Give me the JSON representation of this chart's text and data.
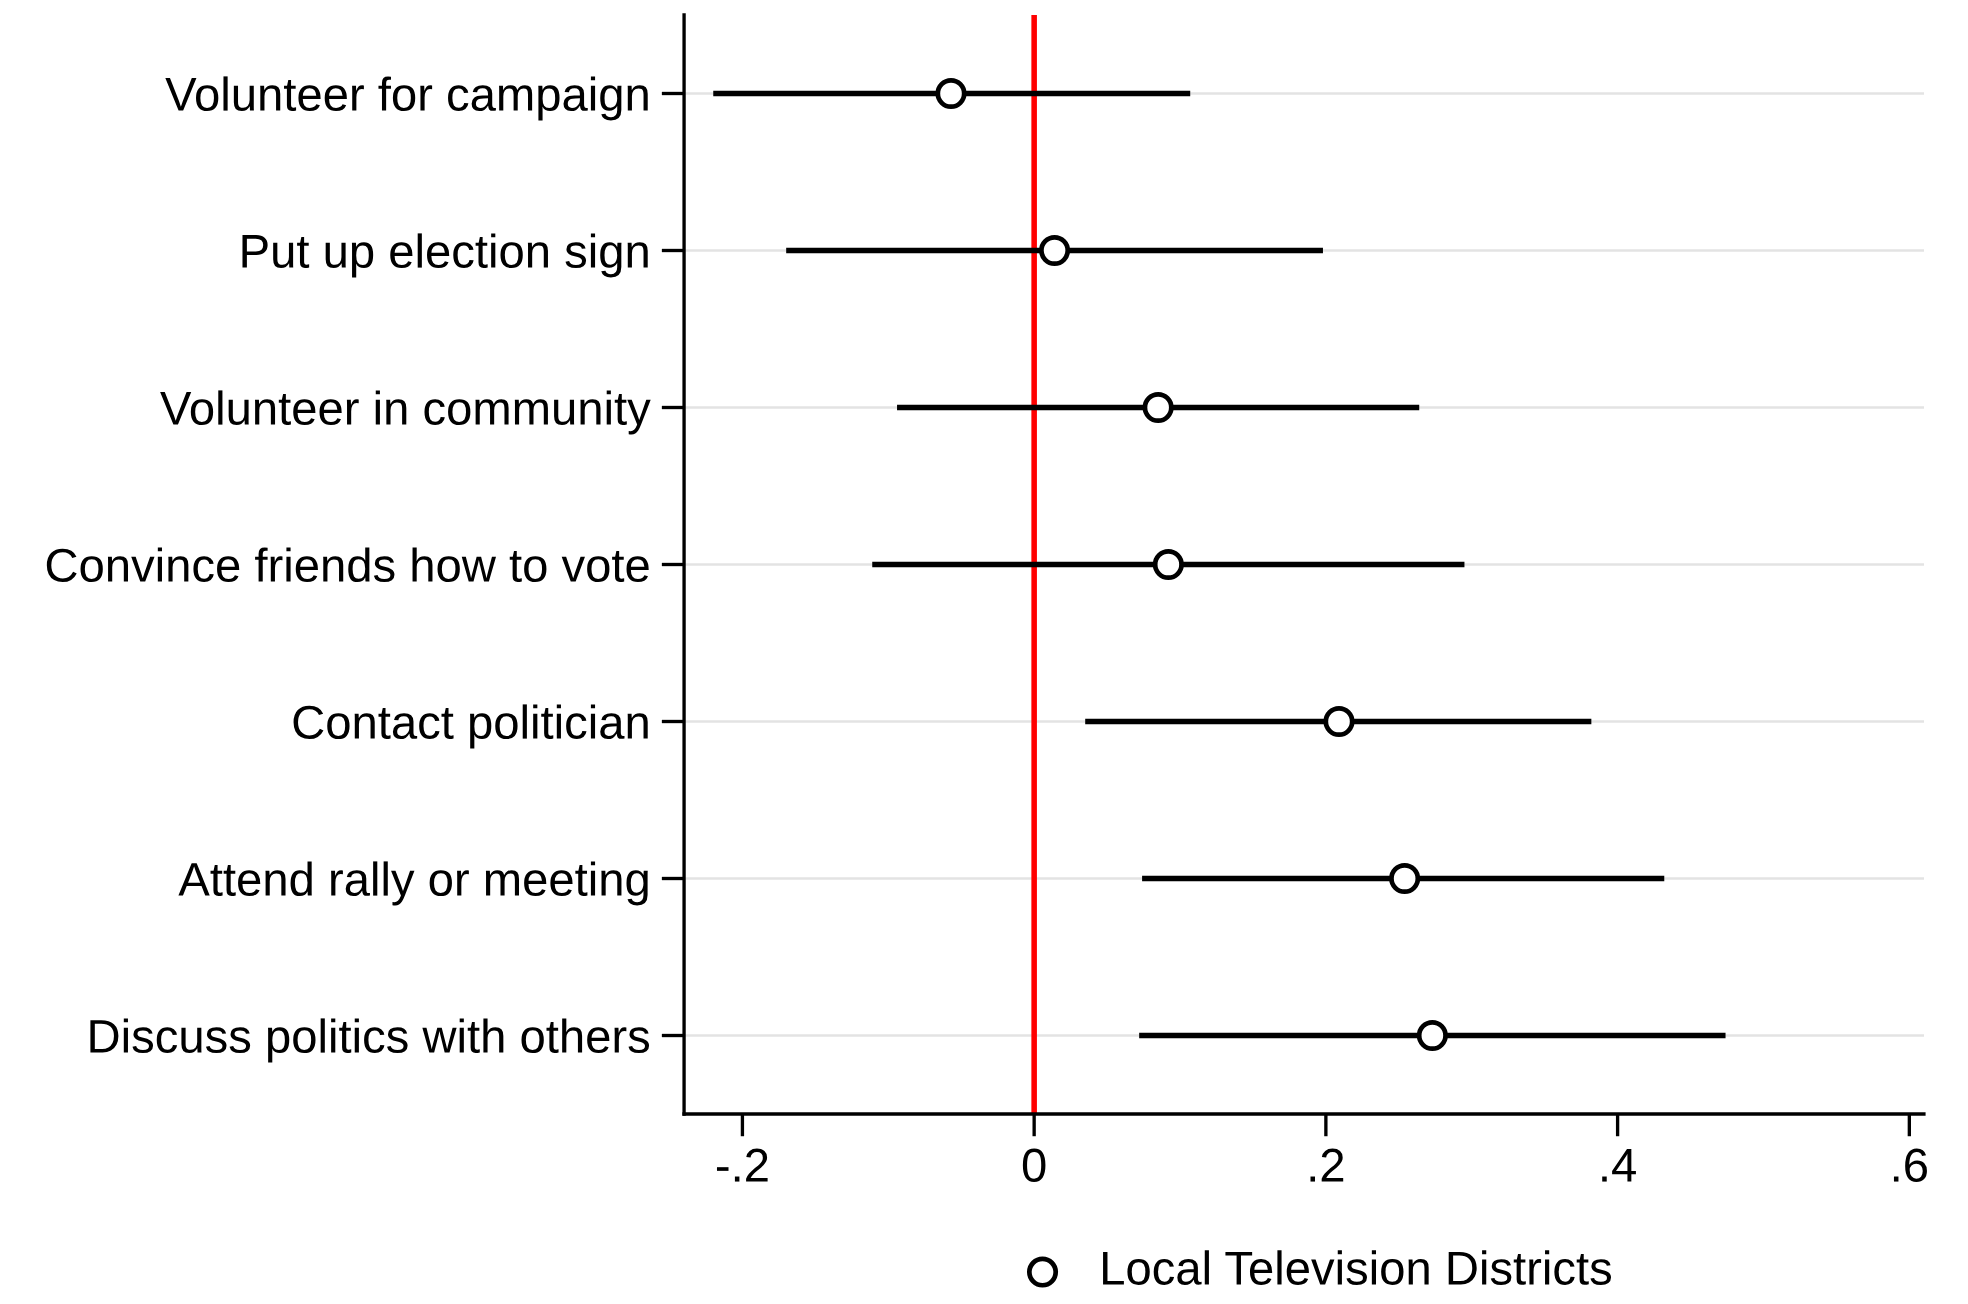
{
  "chart_data": {
    "type": "scatter",
    "orientation": "horizontal",
    "categories": [
      "Volunteer for campaign",
      "Put up election sign",
      "Volunteer in community",
      "Convince friends how to vote",
      "Contact politician",
      "Attend rally or meeting",
      "Discuss politics with others"
    ],
    "series": [
      {
        "name": "Local Television Districts",
        "color": "#000000",
        "values": [
          -0.057,
          0.014,
          0.085,
          0.092,
          0.209,
          0.254,
          0.273
        ],
        "errors": [
          [
            -0.22,
            0.107
          ],
          [
            -0.17,
            0.198
          ],
          [
            -0.094,
            0.264
          ],
          [
            -0.111,
            0.295
          ],
          [
            0.035,
            0.382
          ],
          [
            0.074,
            0.432
          ],
          [
            0.072,
            0.474
          ]
        ]
      }
    ],
    "xlim": [
      -0.24,
      0.61
    ],
    "xticks": [
      {
        "value": -0.2,
        "label": "-.2"
      },
      0,
      {
        "value": 0.2,
        "label": ".2"
      },
      {
        "value": 0.4,
        "label": ".4"
      },
      {
        "value": 0.6,
        "label": ".6"
      }
    ],
    "ref_lines": [
      {
        "axis": "x",
        "value": 0,
        "color": "#ff0000"
      }
    ],
    "grid": "y",
    "legend": "bottom",
    "marker": "circle"
  }
}
